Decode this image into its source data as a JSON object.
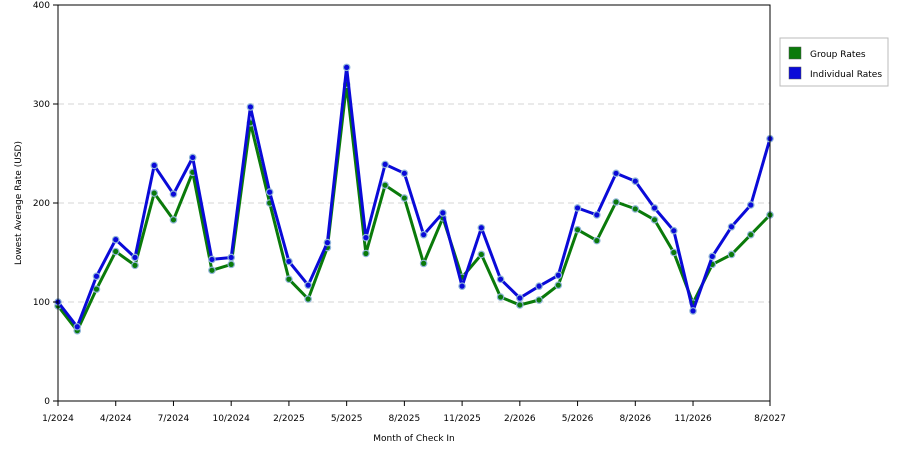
{
  "chart_data": {
    "type": "line",
    "title": "",
    "xlabel": "Month of Check In",
    "ylabel": "Lowest Average Rate (USD)",
    "ylim": [
      0,
      400
    ],
    "yticks": [
      0,
      100,
      200,
      300,
      400
    ],
    "grid": true,
    "legend_position": "top-right",
    "x_tick_labels": [
      "1/2024",
      "4/2024",
      "7/2024",
      "10/2024",
      "2/2025",
      "5/2025",
      "8/2025",
      "11/2025",
      "2/2026",
      "5/2026",
      "8/2026",
      "11/2026",
      "8/2027"
    ],
    "x_tick_indices": [
      0,
      3,
      6,
      9,
      12,
      15,
      18,
      21,
      24,
      27,
      30,
      33,
      37
    ],
    "series": [
      {
        "name": "Group Rates",
        "color": "#0a7a0a",
        "values": [
          96,
          71,
          113,
          151,
          137,
          210,
          183,
          231,
          132,
          138,
          281,
          200,
          123,
          103,
          155,
          320,
          149,
          218,
          205,
          139,
          185,
          125,
          148,
          105,
          97,
          102,
          117,
          173,
          162,
          201,
          194,
          183,
          150,
          99,
          138,
          148,
          168,
          188
        ]
      },
      {
        "name": "Individual Rates",
        "color": "#0a0ad8",
        "values": [
          100,
          75,
          126,
          163,
          145,
          238,
          209,
          246,
          143,
          145,
          297,
          211,
          141,
          117,
          160,
          337,
          165,
          239,
          230,
          168,
          190,
          116,
          175,
          123,
          104,
          116,
          127,
          195,
          188,
          230,
          222,
          195,
          172,
          91,
          146,
          176,
          198,
          265
        ]
      }
    ]
  }
}
